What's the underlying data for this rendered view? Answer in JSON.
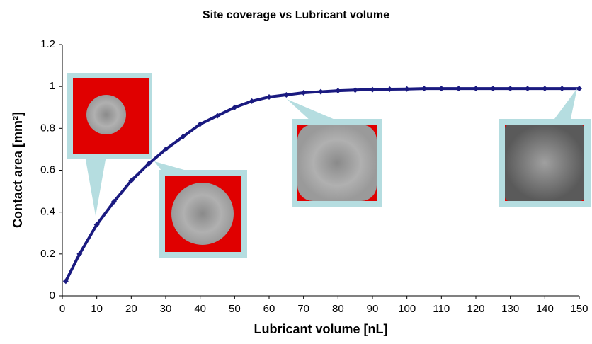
{
  "chart_data": {
    "type": "scatter",
    "title": "Site coverage vs Lubricant volume",
    "x_label": "Lubricant volume [nL]",
    "y_label": "Contact area  [mm²]",
    "series": [
      {
        "color": "#1a1a80",
        "x": [
          1,
          5,
          10,
          15,
          20,
          25,
          30,
          35,
          40,
          45,
          50,
          55,
          60,
          65,
          70,
          75,
          80,
          85,
          90,
          95,
          100,
          105,
          110,
          115,
          120,
          125,
          130,
          135,
          140,
          145,
          150
        ],
        "values": [
          0.07,
          0.2,
          0.34,
          0.45,
          0.55,
          0.63,
          0.7,
          0.76,
          0.82,
          0.86,
          0.9,
          0.93,
          0.95,
          0.96,
          0.97,
          0.975,
          0.98,
          0.983,
          0.985,
          0.987,
          0.988,
          0.99,
          0.99,
          0.99,
          0.99,
          0.99,
          0.99,
          0.99,
          0.99,
          0.99,
          0.99
        ]
      }
    ],
    "xlim": [
      0,
      150
    ],
    "xticks": [
      0,
      10,
      20,
      30,
      40,
      50,
      60,
      70,
      80,
      90,
      100,
      110,
      120,
      130,
      140,
      150
    ],
    "ylim": [
      0,
      1.2
    ],
    "yticks": [
      0,
      0.2,
      0.4,
      0.6,
      0.8,
      1,
      1.2
    ]
  }
}
